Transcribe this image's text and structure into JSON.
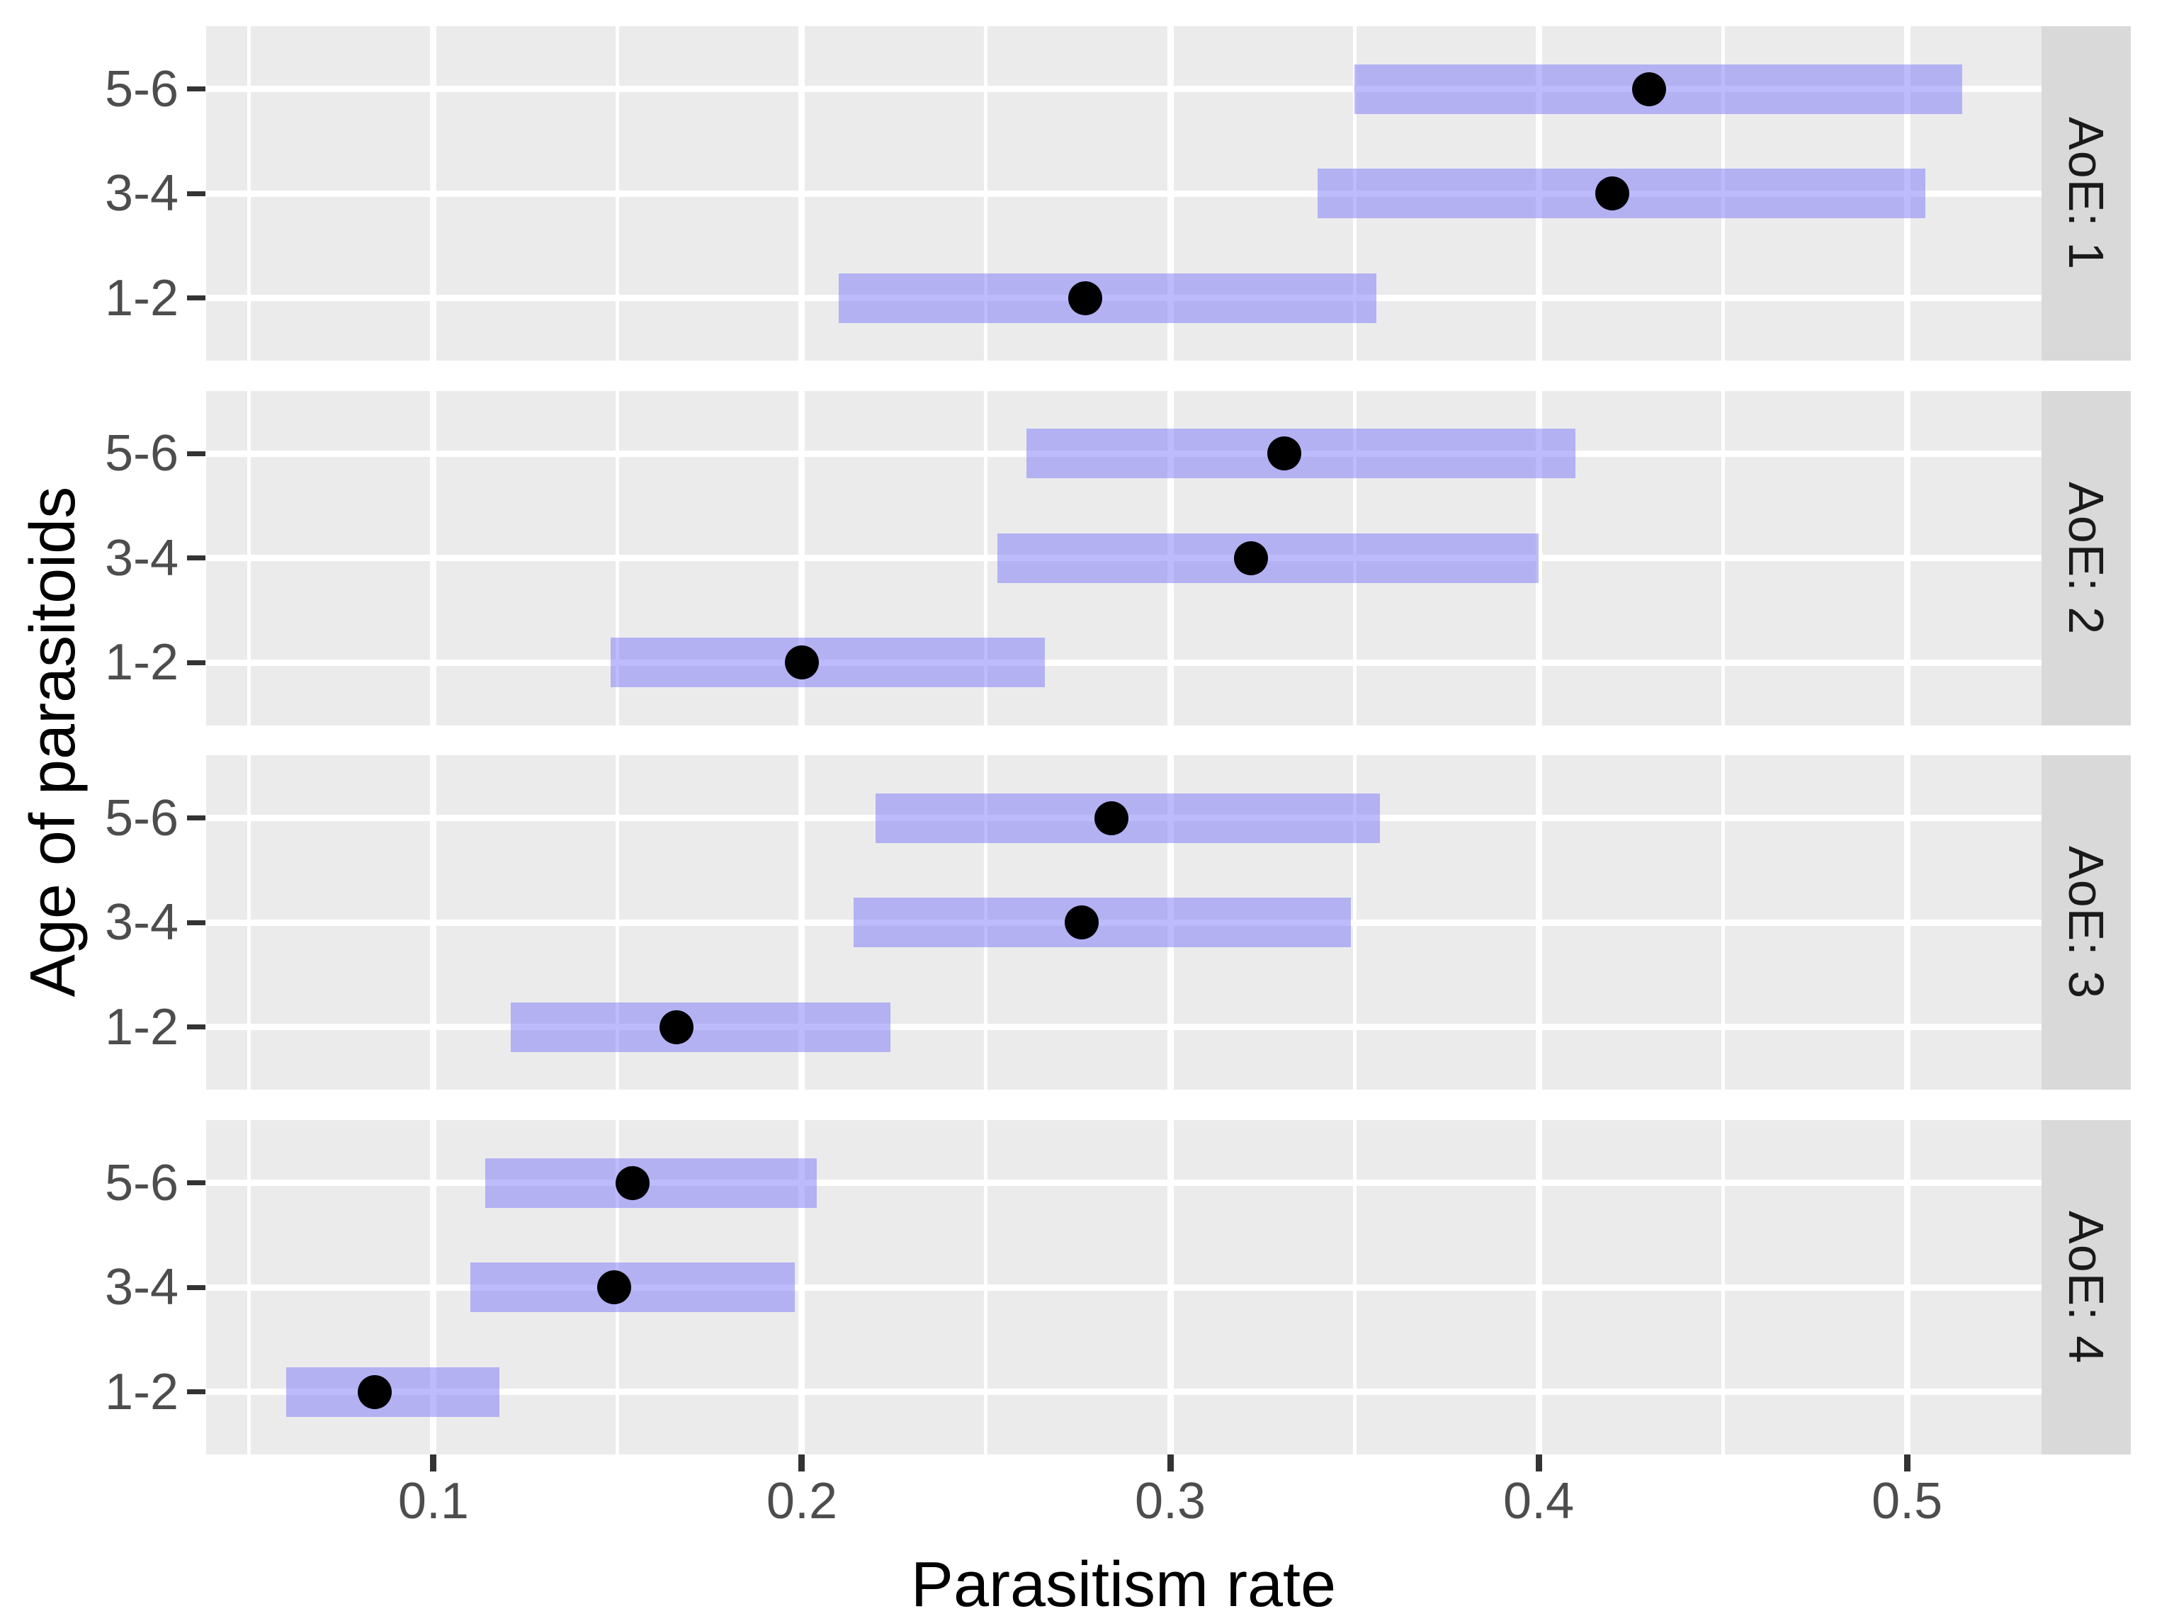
{
  "figure": {
    "xlabel": "Parasitism rate",
    "ylabel": "Age of parasitoids"
  },
  "colors": {
    "panel_background": "#ebebeb",
    "gridline": "#ffffff",
    "strip_background": "#d9d9d9",
    "strip_text": "#1a1a1a",
    "tick_text": "#4d4d4d",
    "tick_mark": "#333333",
    "axis_title_text": "#000000",
    "interval_bar": "rgba(118,112,248,0.48)",
    "estimate_dot": "#000000"
  },
  "chart_data": {
    "type": "interval",
    "title": "",
    "xlabel": "Parasitism rate",
    "ylabel": "Age of parasitoids",
    "grid": true,
    "legend_position": "none",
    "categories_top_to_bottom": [
      "5-6",
      "3-4",
      "1-2"
    ],
    "x_tick_labels": [
      "0.1",
      "0.2",
      "0.3",
      "0.4",
      "0.5"
    ],
    "x_ticks": [
      0.1,
      0.2,
      0.3,
      0.4,
      0.5
    ],
    "x_minor_ticks": [
      0.05,
      0.15,
      0.25,
      0.35,
      0.45
    ],
    "xlim": [
      0.0383,
      0.5365
    ],
    "facets": [
      {
        "label": "AoE: 1",
        "rows": [
          {
            "category": "5-6",
            "estimate": 0.43,
            "lower": 0.35,
            "upper": 0.515
          },
          {
            "category": "3-4",
            "estimate": 0.42,
            "lower": 0.34,
            "upper": 0.505
          },
          {
            "category": "1-2",
            "estimate": 0.277,
            "lower": 0.21,
            "upper": 0.356
          }
        ]
      },
      {
        "label": "AoE: 2",
        "rows": [
          {
            "category": "5-6",
            "estimate": 0.331,
            "lower": 0.261,
            "upper": 0.41
          },
          {
            "category": "3-4",
            "estimate": 0.322,
            "lower": 0.253,
            "upper": 0.4
          },
          {
            "category": "1-2",
            "estimate": 0.2,
            "lower": 0.148,
            "upper": 0.266
          }
        ]
      },
      {
        "label": "AoE: 3",
        "rows": [
          {
            "category": "5-6",
            "estimate": 0.284,
            "lower": 0.22,
            "upper": 0.357
          },
          {
            "category": "3-4",
            "estimate": 0.276,
            "lower": 0.214,
            "upper": 0.349
          },
          {
            "category": "1-2",
            "estimate": 0.166,
            "lower": 0.121,
            "upper": 0.224
          }
        ]
      },
      {
        "label": "AoE: 4",
        "rows": [
          {
            "category": "5-6",
            "estimate": 0.154,
            "lower": 0.114,
            "upper": 0.204
          },
          {
            "category": "3-4",
            "estimate": 0.149,
            "lower": 0.11,
            "upper": 0.198
          },
          {
            "category": "1-2",
            "estimate": 0.084,
            "lower": 0.06,
            "upper": 0.118
          }
        ]
      }
    ]
  }
}
